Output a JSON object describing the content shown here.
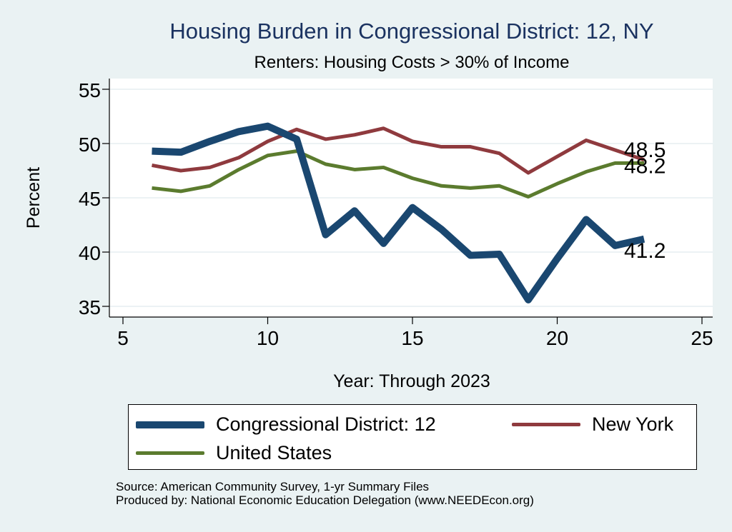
{
  "title": "Housing Burden in Congressional District:  12, NY",
  "subtitle": "Renters: Housing Costs > 30% of Income",
  "source_lines": [
    "Source: American Community Survey, 1-yr Summary Files",
    "Produced by: National Economic Education Delegation (www.NEEDEcon.org)"
  ],
  "chart_data": {
    "type": "line",
    "xlabel": "Year: Through 2023",
    "ylabel": "Percent",
    "xlim": [
      5,
      25
    ],
    "ylim": [
      35,
      55
    ],
    "xticks": [
      5,
      10,
      15,
      20,
      25
    ],
    "yticks": [
      35,
      40,
      45,
      50,
      55
    ],
    "grid": true,
    "legend_position": "bottom",
    "series": [
      {
        "name": "Congressional District:  12",
        "color": "#1a4770",
        "x": [
          6,
          7,
          8,
          9,
          10,
          11,
          12,
          13,
          14,
          15,
          16,
          17,
          18,
          19,
          20,
          21,
          22,
          23
        ],
        "values": [
          49.3,
          49.2,
          50.2,
          51.1,
          51.6,
          50.4,
          41.6,
          43.8,
          40.8,
          44.1,
          42.1,
          39.7,
          39.8,
          35.6,
          39.4,
          43.0,
          40.6,
          41.2
        ],
        "end_label": "41.2"
      },
      {
        "name": "New York",
        "color": "#8f3a3e",
        "x": [
          6,
          7,
          8,
          9,
          10,
          11,
          12,
          13,
          14,
          15,
          16,
          17,
          18,
          19,
          20,
          21,
          22,
          23
        ],
        "values": [
          48.0,
          47.5,
          47.8,
          48.7,
          50.2,
          51.3,
          50.4,
          50.8,
          51.4,
          50.2,
          49.7,
          49.7,
          49.1,
          47.3,
          48.8,
          50.3,
          49.4,
          48.5
        ],
        "end_label": "48.5"
      },
      {
        "name": "United States",
        "color": "#5b7b2e",
        "x": [
          6,
          7,
          8,
          9,
          10,
          11,
          12,
          13,
          14,
          15,
          16,
          17,
          18,
          19,
          20,
          21,
          22,
          23
        ],
        "values": [
          45.9,
          45.6,
          46.1,
          47.6,
          48.9,
          49.3,
          48.1,
          47.6,
          47.8,
          46.8,
          46.1,
          45.9,
          46.1,
          45.1,
          46.3,
          47.4,
          48.2,
          48.2
        ],
        "end_label": "48.2"
      }
    ]
  }
}
